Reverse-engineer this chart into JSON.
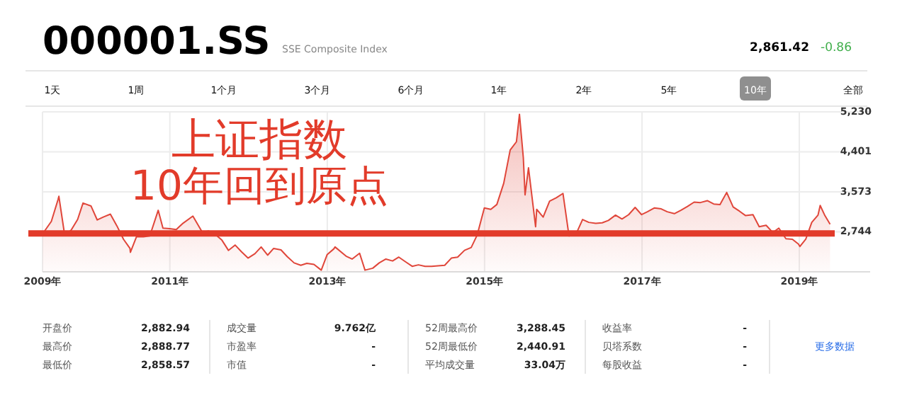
{
  "chart_data": {
    "type": "area",
    "title": "000001.SS",
    "subtitle": "SSE Composite Index",
    "color": "#e0463a",
    "grid": true,
    "x": [
      "2009-05-20",
      "2009-06-30",
      "2009-07-31",
      "2009-08-04",
      "2009-08-31",
      "2009-09-30",
      "2009-10-30",
      "2009-11-24",
      "2009-12-31",
      "2010-01-29",
      "2010-02-26",
      "2010-03-31",
      "2010-04-30",
      "2010-05-31",
      "2010-06-30",
      "2010-07-02",
      "2010-07-30",
      "2010-08-31",
      "2010-09-30",
      "2010-11-08",
      "2010-11-30",
      "2010-12-31",
      "2011-01-31",
      "2011-02-28",
      "2011-04-18",
      "2011-05-31",
      "2011-06-30",
      "2011-07-29",
      "2011-08-31",
      "2011-09-30",
      "2011-10-31",
      "2011-11-30",
      "2011-12-30",
      "2012-01-31",
      "2012-02-29",
      "2012-03-30",
      "2012-04-27",
      "2012-05-31",
      "2012-06-29",
      "2012-07-31",
      "2012-08-31",
      "2012-09-28",
      "2012-10-31",
      "2012-12-04",
      "2012-12-31",
      "2013-01-31",
      "2013-02-06",
      "2013-03-29",
      "2013-04-26",
      "2013-05-31",
      "2013-06-25",
      "2013-07-31",
      "2013-08-30",
      "2013-09-30",
      "2013-10-31",
      "2013-11-29",
      "2013-12-31",
      "2014-01-30",
      "2014-02-28",
      "2014-03-31",
      "2014-04-30",
      "2014-05-30",
      "2014-06-30",
      "2014-07-31",
      "2014-08-29",
      "2014-09-30",
      "2014-10-31",
      "2014-11-28",
      "2014-12-31",
      "2015-01-30",
      "2015-02-27",
      "2015-03-31",
      "2015-04-30",
      "2015-05-29",
      "2015-06-12",
      "2015-06-30",
      "2015-07-08",
      "2015-07-24",
      "2015-08-26",
      "2015-08-31",
      "2015-09-30",
      "2015-10-30",
      "2015-11-30",
      "2015-12-31",
      "2016-01-28",
      "2016-02-29",
      "2016-03-31",
      "2016-04-29",
      "2016-05-31",
      "2016-06-30",
      "2016-07-29",
      "2016-08-31",
      "2016-09-30",
      "2016-10-31",
      "2016-11-30",
      "2016-12-30",
      "2017-01-26",
      "2017-02-28",
      "2017-03-31",
      "2017-04-28",
      "2017-05-31",
      "2017-06-30",
      "2017-07-31",
      "2017-08-31",
      "2017-09-29",
      "2017-10-31",
      "2017-11-30",
      "2017-12-29",
      "2018-01-29",
      "2018-02-28",
      "2018-03-30",
      "2018-04-27",
      "2018-05-31",
      "2018-06-29",
      "2018-07-31",
      "2018-08-31",
      "2018-09-28",
      "2018-10-31",
      "2018-11-30",
      "2018-12-28",
      "2019-01-04",
      "2019-01-31",
      "2019-02-28",
      "2019-03-29",
      "2019-04-08",
      "2019-04-30",
      "2019-05-24"
    ],
    "values": [
      2700,
      2960,
      3410,
      3480,
      2670,
      2780,
      3000,
      3340,
      3280,
      2990,
      3050,
      3110,
      2870,
      2590,
      2400,
      2320,
      2640,
      2640,
      2660,
      3190,
      2820,
      2810,
      2790,
      2910,
      3070,
      2740,
      2760,
      2700,
      2570,
      2360,
      2470,
      2330,
      2200,
      2290,
      2430,
      2260,
      2400,
      2370,
      2230,
      2100,
      2050,
      2090,
      2070,
      1950,
      2270,
      2390,
      2430,
      2240,
      2180,
      2300,
      1950,
      1990,
      2100,
      2180,
      2140,
      2220,
      2120,
      2030,
      2060,
      2030,
      2030,
      2040,
      2050,
      2200,
      2220,
      2360,
      2420,
      2680,
      3240,
      3210,
      3310,
      3750,
      4440,
      4610,
      5180,
      4280,
      3510,
      4070,
      2850,
      3210,
      3050,
      3380,
      3450,
      3540,
      2660,
      2690,
      3000,
      2940,
      2920,
      2930,
      2980,
      3090,
      3010,
      3100,
      3250,
      3100,
      3160,
      3240,
      3220,
      3160,
      3120,
      3190,
      3270,
      3360,
      3350,
      3390,
      3320,
      3310,
      3560,
      3260,
      3170,
      3080,
      3100,
      2850,
      2880,
      2730,
      2820,
      2600,
      2590,
      2490,
      2440,
      2590,
      2940,
      3090,
      3290,
      3080,
      2900
    ],
    "xlim": [
      "2009-05-20",
      "2019-11-26"
    ],
    "xticks": [
      {
        "value": "2009-05-20",
        "label": "2009年"
      },
      {
        "value": "2011-01-01",
        "label": "2011年"
      },
      {
        "value": "2013-01-01",
        "label": "2013年"
      },
      {
        "value": "2015-01-01",
        "label": "2015年"
      },
      {
        "value": "2017-01-01",
        "label": "2017年"
      },
      {
        "value": "2019-01-01",
        "label": "2019年"
      }
    ],
    "ylim": [
      1915,
      5230
    ],
    "yticks": [
      {
        "value": 2744,
        "label": "2,744"
      },
      {
        "value": 3573,
        "label": "3,573"
      },
      {
        "value": 4401,
        "label": "4,401"
      },
      {
        "value": 5230,
        "label": "5,230"
      }
    ],
    "ref_lines": [
      {
        "axis": "y",
        "value": 2710,
        "color": "#e23b2a"
      }
    ],
    "annotations": [
      "上证指数",
      "10年回到原点",
      "2,861.42",
      "-0.86",
      "1天",
      "1周",
      "1个月",
      "3个月",
      "6个月",
      "1年",
      "2年",
      "5年",
      "10年",
      "全部",
      "开盘价",
      "2,882.94",
      "最高价",
      "2,888.77",
      "最低价",
      "2,858.57",
      "成交量",
      "9.762亿",
      "市盈率",
      "-",
      "市值",
      "-",
      "52周最高价",
      "3,288.45",
      "52周最低价",
      "2,440.91",
      "平均成交量",
      "33.04万",
      "收益率",
      "-",
      "贝塔系数",
      "-",
      "每股收益",
      "-",
      "更多数据"
    ]
  }
}
